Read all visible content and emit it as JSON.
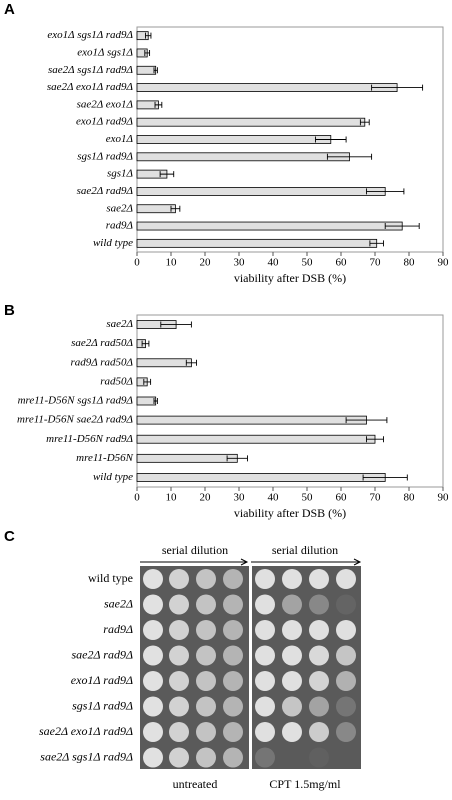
{
  "panel_labels": [
    "A",
    "B",
    "C"
  ],
  "chart_data": [
    {
      "type": "bar",
      "orientation": "horizontal",
      "categories": [
        "exo1Δ sgs1Δ rad9Δ",
        "exo1Δ sgs1Δ",
        "sae2Δ sgs1Δ rad9Δ",
        "sae2Δ exo1Δ rad9Δ",
        "sae2Δ exo1Δ",
        "exo1Δ rad9Δ",
        "exo1Δ",
        "sgs1Δ rad9Δ",
        "sgs1Δ",
        "sae2Δ rad9Δ",
        "sae2Δ",
        "rad9Δ",
        "wild type"
      ],
      "values": [
        3.3,
        3,
        5.5,
        76.5,
        6.3,
        67,
        57,
        62.5,
        8.8,
        73,
        11.3,
        78,
        70.5
      ],
      "errors": [
        0.8,
        0.7,
        0.5,
        7.5,
        1,
        1.3,
        4.5,
        6.5,
        2,
        5.5,
        1.3,
        5,
        2
      ],
      "color": "#e0e0e0",
      "xlabel": "viability after DSB (%)",
      "xlim": [
        0,
        90
      ],
      "xticks": [
        0,
        10,
        20,
        30,
        40,
        50,
        60,
        70,
        80,
        90
      ]
    },
    {
      "type": "bar",
      "orientation": "horizontal",
      "categories": [
        "sae2Δ",
        "sae2Δ rad50Δ",
        "rad9Δ rad50Δ",
        "rad50Δ",
        "mre11-D56N sgs1Δ rad9Δ",
        "mre11-D56N sae2Δ rad9Δ",
        "mre11-D56N rad9Δ",
        "mre11-D56N",
        "wild type"
      ],
      "values": [
        11.5,
        2.5,
        16,
        3,
        5.5,
        67.5,
        70,
        29.5,
        73
      ],
      "errors": [
        4.5,
        1,
        1.5,
        1,
        0.5,
        6,
        2.5,
        3,
        6.5
      ],
      "color": "#e0e0e0",
      "xlabel": "viability after DSB (%)",
      "xlim": [
        0,
        90
      ],
      "xticks": [
        0,
        10,
        20,
        30,
        40,
        50,
        60,
        70,
        80,
        90
      ]
    }
  ],
  "spot_assay": {
    "headers": [
      "serial dilution",
      "serial dilution"
    ],
    "strains": [
      "wild type",
      "sae2Δ",
      "rad9Δ",
      "sae2Δ rad9Δ",
      "exo1Δ rad9Δ",
      "sgs1Δ rad9Δ",
      "sae2Δ exo1Δ rad9Δ",
      "sae2Δ sgs1Δ rad9Δ"
    ],
    "conditions": [
      "untreated",
      "CPT 1.5mg/ml"
    ]
  }
}
